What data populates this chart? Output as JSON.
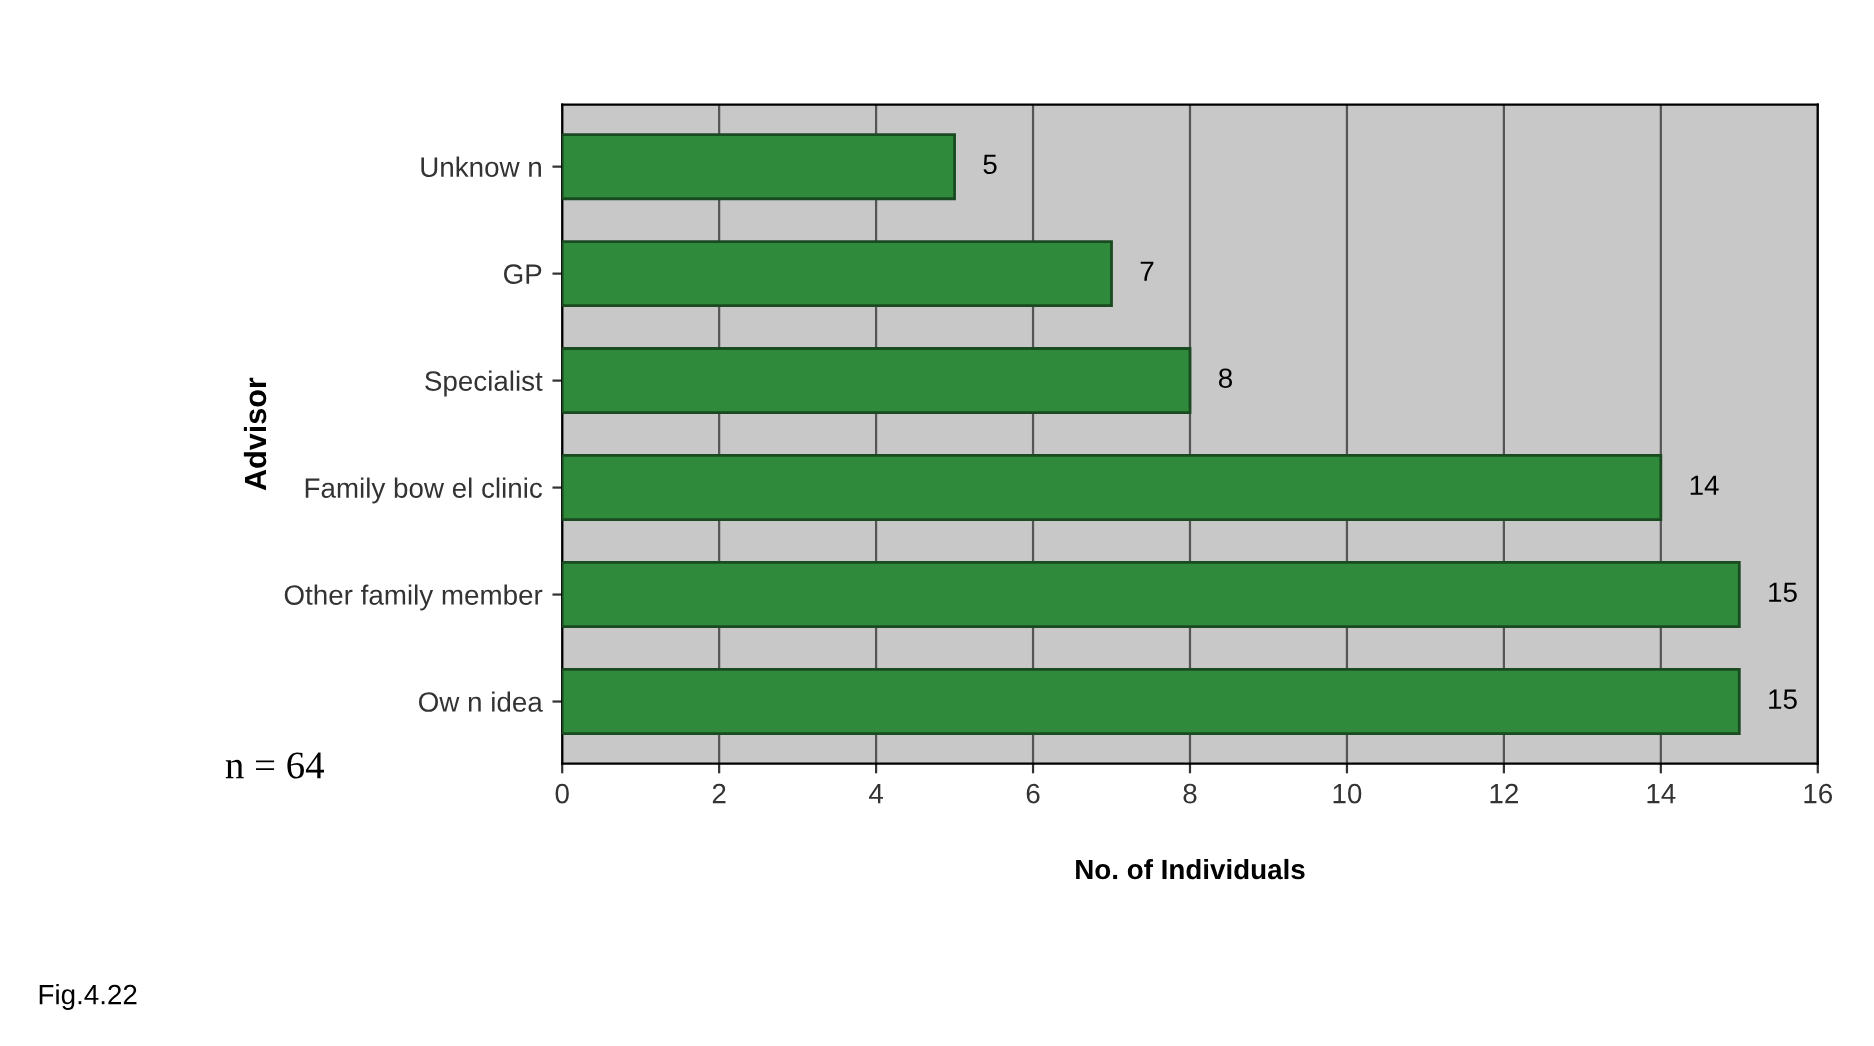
{
  "chart_data": {
    "type": "bar",
    "orientation": "horizontal",
    "categories": [
      "Unknow n",
      "GP",
      "Specialist",
      "Family bow el clinic",
      "Other family member",
      "Ow n idea"
    ],
    "values": [
      5,
      7,
      8,
      14,
      15,
      15
    ],
    "color": "#2f8a3c",
    "xlabel": "No. of Individuals",
    "ylabel": "Advisor",
    "xlim": [
      0,
      16
    ],
    "xticks": [
      0,
      2,
      4,
      6,
      8,
      10,
      12,
      14,
      16
    ],
    "grid": "x",
    "data_labels": true,
    "annotations": [
      "n = 64",
      "Fig.4.22"
    ]
  }
}
